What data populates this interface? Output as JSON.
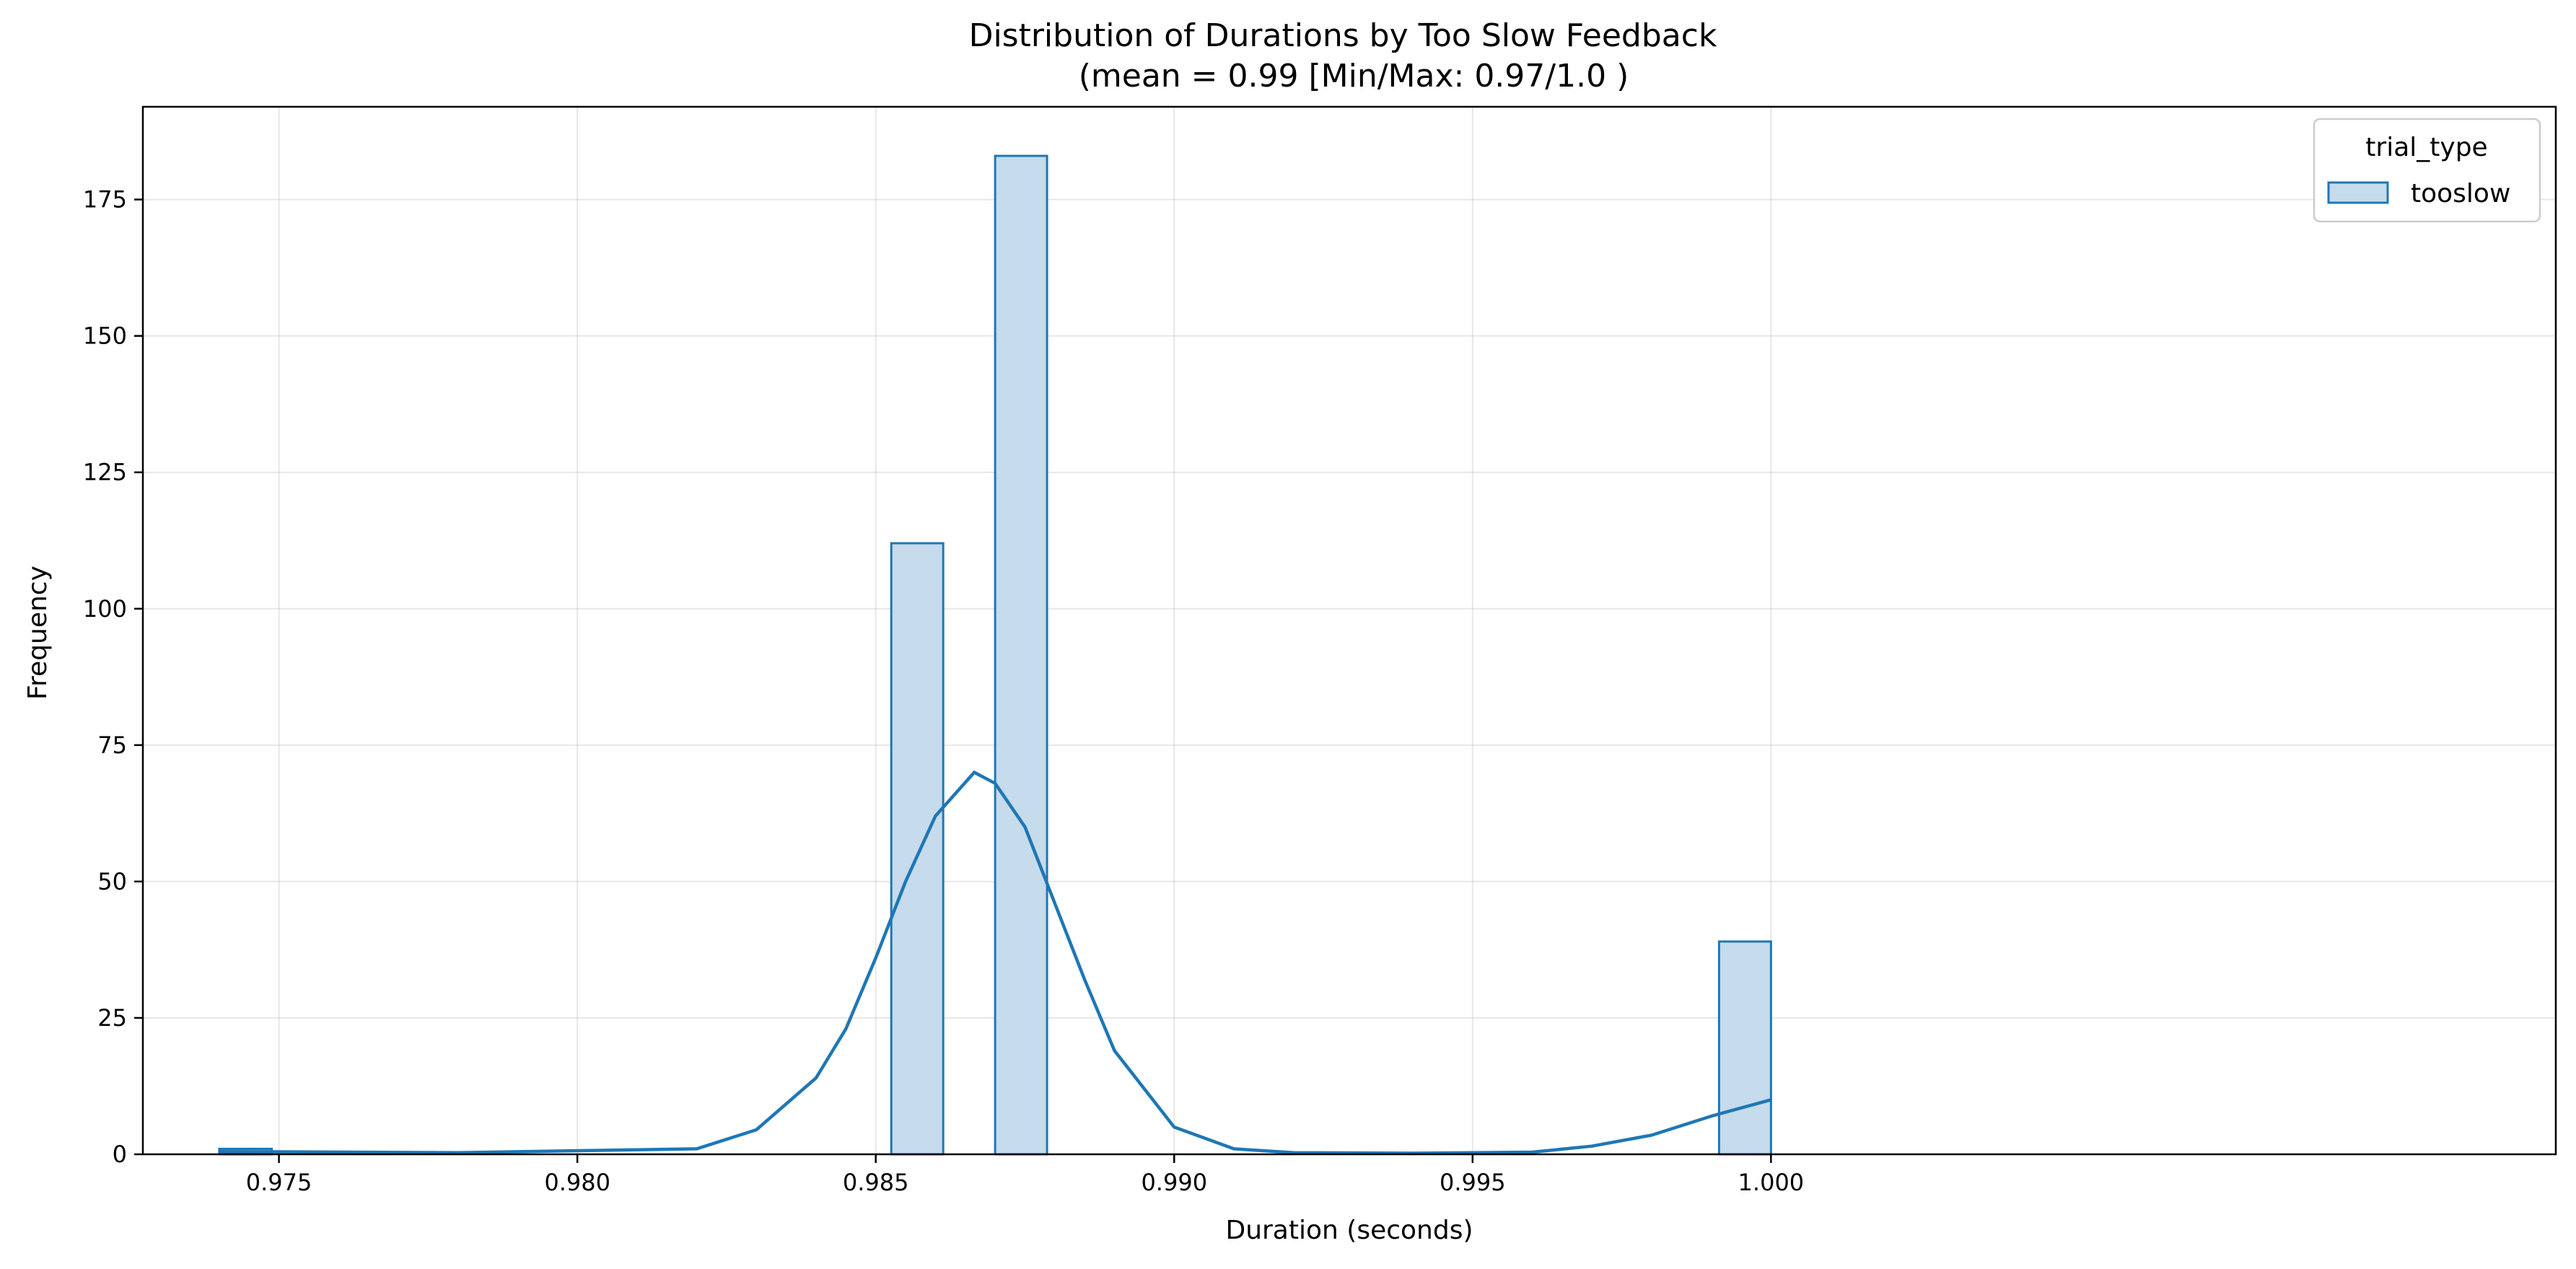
{
  "chart_data": {
    "type": "bar",
    "title": "Distribution of Durations by Too Slow Feedback",
    "subtitle": "(mean = 0.99 [Min/Max: 0.97/1.0 )",
    "xlabel": "Duration (seconds)",
    "ylabel": "Frequency",
    "xlim": [
      0.97272,
      1.01315
    ],
    "ylim": [
      0,
      192
    ],
    "xticks": [
      0.975,
      0.98,
      0.985,
      0.99,
      0.995,
      1.0
    ],
    "xtick_labels": [
      "0.975",
      "0.980",
      "0.985",
      "0.990",
      "0.995",
      "1.000"
    ],
    "yticks": [
      0,
      25,
      50,
      75,
      100,
      125,
      150,
      175
    ],
    "ytick_labels": [
      "0",
      "25",
      "50",
      "75",
      "100",
      "125",
      "150",
      "175"
    ],
    "grid": true,
    "legend": {
      "title": "trial_type",
      "placement": "top-right",
      "entries": [
        "tooslow"
      ]
    },
    "series": [
      {
        "name": "tooslow",
        "color": "#1f77b4",
        "fill_color": "#c6dbec",
        "bins": [
          {
            "x0": 0.974,
            "x1": 0.97488,
            "count": 1
          },
          {
            "x0": 0.98526,
            "x1": 0.98613,
            "count": 112
          },
          {
            "x0": 0.987,
            "x1": 0.98787,
            "count": 183
          },
          {
            "x0": 0.99913,
            "x1": 1.0,
            "count": 39
          }
        ],
        "kde": {
          "x": [
            0.974,
            0.978,
            0.982,
            0.983,
            0.984,
            0.9845,
            0.985,
            0.9855,
            0.986,
            0.98665,
            0.987,
            0.9875,
            0.988,
            0.9885,
            0.989,
            0.99,
            0.991,
            0.992,
            0.994,
            0.996,
            0.997,
            0.998,
            0.999,
            0.9995,
            1.0
          ],
          "y": [
            0.5,
            0.3,
            1.0,
            4.5,
            14,
            23,
            36,
            50,
            62,
            70,
            68,
            60,
            46,
            32,
            19,
            5,
            1.0,
            0.3,
            0.2,
            0.4,
            1.5,
            3.5,
            7,
            8.5,
            10
          ]
        }
      }
    ]
  }
}
